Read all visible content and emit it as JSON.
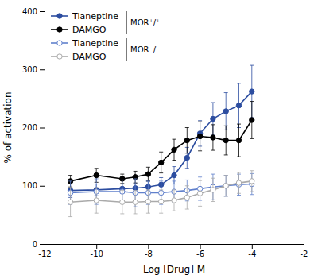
{
  "chart_data": {
    "type": "line",
    "xlabel": "Log [Drug] M",
    "ylabel": "% of activation",
    "xlim": [
      -12,
      -2
    ],
    "ylim": [
      0,
      400
    ],
    "xticks": [
      -12,
      -10,
      -8,
      -6,
      -4,
      -2
    ],
    "yticks": [
      0,
      100,
      200,
      300,
      400
    ],
    "x": [
      -11,
      -10,
      -9,
      -8.5,
      -8,
      -7.5,
      -7,
      -6.5,
      -6,
      -5.5,
      -5,
      -4.5,
      -4
    ],
    "series": [
      {
        "name": "Tianeptine",
        "color": "#2c4da0",
        "marker": "circle",
        "values": [
          92,
          93,
          95,
          96,
          98,
          102,
          118,
          148,
          190,
          215,
          228,
          238,
          262
        ],
        "errors": [
          12,
          10,
          8,
          8,
          10,
          12,
          15,
          18,
          22,
          28,
          32,
          38,
          45
        ]
      },
      {
        "name": "DAMGO",
        "color": "#000000",
        "marker": "circle",
        "values": [
          108,
          118,
          112,
          115,
          120,
          140,
          162,
          178,
          185,
          183,
          178,
          178,
          213
        ],
        "errors": [
          10,
          12,
          8,
          10,
          12,
          18,
          18,
          22,
          25,
          22,
          25,
          28,
          32
        ]
      },
      {
        "name": "Tianeptine",
        "color": "#6080cc",
        "marker": "circle-open",
        "values": [
          88,
          90,
          90,
          88,
          88,
          88,
          90,
          92,
          95,
          98,
          100,
          102,
          103
        ],
        "errors": [
          20,
          22,
          20,
          24,
          20,
          20,
          18,
          18,
          20,
          22,
          18,
          18,
          18
        ]
      },
      {
        "name": "DAMGO",
        "color": "#aaaaaa",
        "marker": "circle-open",
        "values": [
          72,
          75,
          72,
          72,
          73,
          73,
          75,
          80,
          87,
          93,
          100,
          105,
          108
        ],
        "errors": [
          25,
          22,
          20,
          20,
          20,
          20,
          18,
          20,
          22,
          20,
          18,
          18,
          18
        ]
      }
    ],
    "annotations": [
      "MOR⁺/⁺",
      "MOR⁻/⁻"
    ],
    "legend": "upper left"
  }
}
